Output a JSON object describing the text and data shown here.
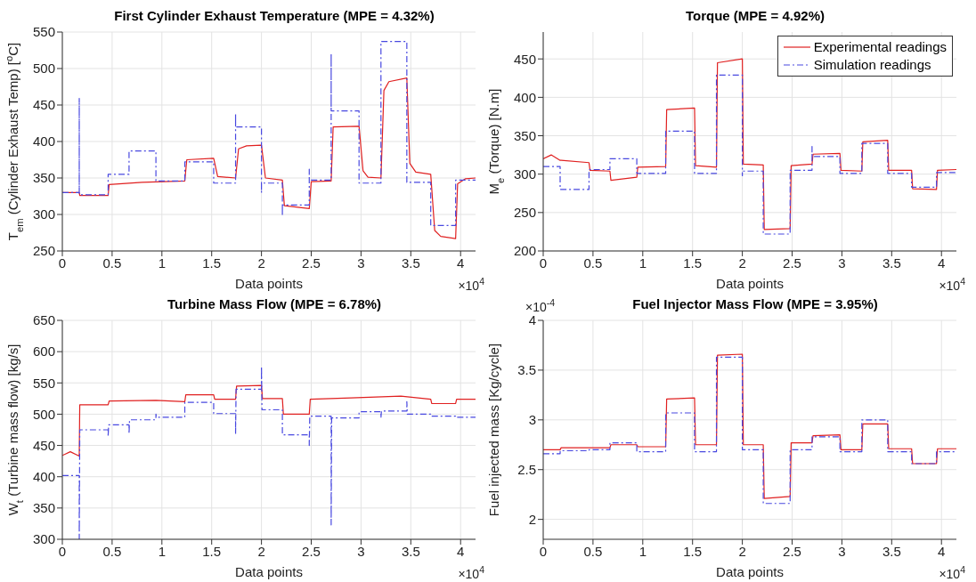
{
  "chart_data": [
    {
      "type": "line",
      "title": "First Cylinder Exhaust Temperature (MPE = 4.32%)",
      "xlabel": "Data points",
      "ylabel": "T$_{em}$ (Cylinder Exhaust Temp) [$^{o}$C]",
      "xlim": [
        0,
        4.15
      ],
      "xticks": [
        0,
        0.5,
        1,
        1.5,
        2,
        2.5,
        3,
        3.5,
        4
      ],
      "ylim": [
        250,
        550
      ],
      "yticks": [
        250,
        300,
        350,
        400,
        450,
        500,
        550
      ],
      "grid": true,
      "annotations": [
        "×10$^{4}$"
      ],
      "series": [
        {
          "color": "#e02020",
          "line_style": "solid",
          "x": [
            0,
            0.17,
            0.175,
            0.46,
            0.47,
            0.8,
            1.23,
            1.25,
            1.52,
            1.56,
            1.74,
            1.77,
            1.85,
            2.0,
            2.04,
            2.21,
            2.23,
            2.48,
            2.5,
            2.7,
            2.72,
            2.98,
            3.02,
            3.07,
            3.2,
            3.23,
            3.28,
            3.46,
            3.49,
            3.55,
            3.7,
            3.74,
            3.8,
            3.95,
            3.97,
            4.05,
            4.15
          ],
          "values": [
            330,
            330,
            326,
            326,
            341,
            344,
            346,
            375,
            377,
            352,
            350,
            390,
            394,
            395,
            350,
            347,
            312,
            308,
            345,
            346,
            420,
            421,
            360,
            351,
            350,
            470,
            482,
            487,
            370,
            358,
            355,
            278,
            270,
            267,
            342,
            349,
            350
          ]
        },
        {
          "color": "#4848e0",
          "line_style": "dashed",
          "x": [
            0,
            0.17,
            0.17,
            0.17,
            0.46,
            0.46,
            0.67,
            0.67,
            0.94,
            0.94,
            1.23,
            1.23,
            1.52,
            1.52,
            1.74,
            1.74,
            1.74,
            2.0,
            2.0,
            2.0,
            2.21,
            2.21,
            2.21,
            2.48,
            2.48,
            2.48,
            2.7,
            2.7,
            2.7,
            2.98,
            2.98,
            3.2,
            3.2,
            3.46,
            3.46,
            3.7,
            3.7,
            3.95,
            3.95,
            4.15
          ],
          "values": [
            330,
            330,
            459,
            327,
            327,
            355,
            355,
            387,
            387,
            346,
            346,
            372,
            372,
            343,
            343,
            438,
            420,
            420,
            330,
            343,
            343,
            298,
            313,
            313,
            362,
            347,
            347,
            520,
            442,
            442,
            343,
            343,
            537,
            537,
            344,
            344,
            285,
            285,
            347,
            347
          ]
        }
      ]
    },
    {
      "type": "line",
      "title": "Torque (MPE = 4.92%)",
      "xlabel": "Data points",
      "ylabel": "M$_{e}$ (Torque) [N.m]",
      "xlim": [
        0,
        4.15
      ],
      "xticks": [
        0,
        0.5,
        1,
        1.5,
        2,
        2.5,
        3,
        3.5,
        4
      ],
      "ylim": [
        200,
        485
      ],
      "yticks": [
        200,
        250,
        300,
        350,
        400,
        450
      ],
      "grid": true,
      "legend": "top right",
      "annotations": [
        "×10$^{4}$"
      ],
      "series": [
        {
          "name": "Experimental readings",
          "color": "#e02020",
          "line_style": "solid",
          "x": [
            0,
            0.08,
            0.17,
            0.18,
            0.46,
            0.47,
            0.67,
            0.68,
            0.94,
            0.95,
            1.23,
            1.24,
            1.52,
            1.53,
            1.74,
            1.75,
            2.0,
            2.01,
            2.21,
            2.22,
            2.48,
            2.49,
            2.7,
            2.71,
            2.98,
            2.99,
            3.2,
            3.21,
            3.46,
            3.47,
            3.7,
            3.71,
            3.95,
            3.96,
            4.15
          ],
          "values": [
            320,
            325,
            318,
            318,
            315,
            305,
            304,
            292,
            296,
            309,
            310,
            384,
            386,
            311,
            309,
            445,
            450,
            313,
            312,
            228,
            229,
            311,
            313,
            326,
            327,
            305,
            304,
            342,
            344,
            305,
            305,
            281,
            280,
            305,
            306
          ]
        },
        {
          "name": "Simulation readings",
          "color": "#4848e0",
          "line_style": "dashed",
          "x": [
            0,
            0.17,
            0.17,
            0.46,
            0.46,
            0.67,
            0.67,
            0.94,
            0.94,
            1.23,
            1.23,
            1.52,
            1.52,
            1.74,
            1.74,
            2.0,
            2.0,
            2.0,
            2.21,
            2.21,
            2.48,
            2.48,
            2.7,
            2.7,
            2.7,
            2.98,
            2.98,
            3.2,
            3.2,
            3.46,
            3.46,
            3.7,
            3.7,
            3.95,
            3.95,
            4.15
          ],
          "values": [
            310,
            310,
            280,
            280,
            306,
            306,
            320,
            320,
            301,
            301,
            356,
            356,
            301,
            301,
            429,
            429,
            298,
            304,
            304,
            222,
            222,
            305,
            305,
            336,
            323,
            323,
            301,
            301,
            340,
            340,
            301,
            301,
            283,
            283,
            302,
            302
          ]
        }
      ]
    },
    {
      "type": "line",
      "title": "Turbine Mass Flow (MPE = 6.78%)",
      "xlabel": "Data points",
      "ylabel": "W$_{t}$ (Turbine mass flow) [kg/s]",
      "xlim": [
        0,
        4.15
      ],
      "xticks": [
        0,
        0.5,
        1,
        1.5,
        2,
        2.5,
        3,
        3.5,
        4
      ],
      "ylim": [
        300,
        650
      ],
      "yticks": [
        300,
        350,
        400,
        450,
        500,
        550,
        600,
        650
      ],
      "grid": true,
      "annotations": [
        "×10$^{4}$"
      ],
      "series": [
        {
          "color": "#e02020",
          "line_style": "solid",
          "x": [
            0,
            0.08,
            0.17,
            0.175,
            0.46,
            0.47,
            0.94,
            1.23,
            1.24,
            1.52,
            1.53,
            1.74,
            1.75,
            2.0,
            2.01,
            2.21,
            2.22,
            2.48,
            2.49,
            2.9,
            3.4,
            3.7,
            3.71,
            3.95,
            3.96,
            4.15
          ],
          "values": [
            434,
            440,
            433,
            515,
            515,
            521,
            522,
            520,
            531,
            531,
            524,
            524,
            545,
            546,
            525,
            525,
            500,
            500,
            524,
            526,
            529,
            524,
            517,
            517,
            524,
            524
          ]
        },
        {
          "color": "#4848e0",
          "line_style": "dashed",
          "x": [
            0,
            0.17,
            0.17,
            0.175,
            0.46,
            0.46,
            0.465,
            0.67,
            0.67,
            0.675,
            0.94,
            0.94,
            0.945,
            1.23,
            1.23,
            1.52,
            1.52,
            1.74,
            1.74,
            1.745,
            2.0,
            2.0,
            2.005,
            2.21,
            2.21,
            2.48,
            2.48,
            2.485,
            2.7,
            2.7,
            2.705,
            2.98,
            2.98,
            3.2,
            3.2,
            3.205,
            3.46,
            3.46,
            3.465,
            3.7,
            3.7,
            3.95,
            3.95,
            4.15
          ],
          "values": [
            402,
            402,
            300,
            475,
            475,
            465,
            483,
            483,
            469,
            491,
            491,
            500,
            495,
            495,
            519,
            519,
            501,
            501,
            468,
            540,
            540,
            576,
            507,
            507,
            467,
            467,
            450,
            497,
            497,
            323,
            494,
            494,
            504,
            504,
            494,
            505,
            505,
            520,
            500,
            500,
            497,
            497,
            495,
            495
          ]
        }
      ]
    },
    {
      "type": "line",
      "title": "Fuel Injector Mass Flow (MPE = 3.95%)",
      "xlabel": "Data points",
      "ylabel": "Fuel injected mass [Kg/cycle]",
      "xlim": [
        0,
        4.15
      ],
      "xticks": [
        0,
        0.5,
        1,
        1.5,
        2,
        2.5,
        3,
        3.5,
        4
      ],
      "ylim": [
        1.8,
        4
      ],
      "yticks": [
        2,
        2.5,
        3,
        3.5,
        4
      ],
      "grid": true,
      "annotations": [
        "×10$^{4}$",
        "×10$^{-4}$"
      ],
      "series": [
        {
          "color": "#e02020",
          "line_style": "solid",
          "x": [
            0,
            0.17,
            0.18,
            0.67,
            0.68,
            0.94,
            0.95,
            1.23,
            1.24,
            1.52,
            1.53,
            1.74,
            1.75,
            2.0,
            2.01,
            2.21,
            2.22,
            2.48,
            2.49,
            2.7,
            2.71,
            2.98,
            2.99,
            3.2,
            3.21,
            3.46,
            3.47,
            3.7,
            3.71,
            3.95,
            3.96,
            4.15
          ],
          "values": [
            2.7,
            2.7,
            2.72,
            2.72,
            2.75,
            2.75,
            2.73,
            2.73,
            3.21,
            3.22,
            2.75,
            2.75,
            3.65,
            3.66,
            2.75,
            2.75,
            2.21,
            2.23,
            2.77,
            2.77,
            2.84,
            2.85,
            2.7,
            2.7,
            2.96,
            2.96,
            2.71,
            2.71,
            2.56,
            2.56,
            2.71,
            2.71
          ]
        },
        {
          "color": "#4848e0",
          "line_style": "dashed",
          "x": [
            0,
            0.17,
            0.17,
            0.46,
            0.46,
            0.67,
            0.67,
            0.94,
            0.94,
            1.23,
            1.23,
            1.52,
            1.52,
            1.74,
            1.74,
            2.0,
            2.0,
            2.21,
            2.21,
            2.48,
            2.48,
            2.7,
            2.7,
            2.98,
            2.98,
            3.2,
            3.2,
            3.46,
            3.46,
            3.7,
            3.7,
            3.95,
            3.95,
            4.15
          ],
          "values": [
            2.66,
            2.66,
            2.69,
            2.69,
            2.7,
            2.7,
            2.77,
            2.77,
            2.68,
            2.68,
            3.07,
            3.07,
            2.68,
            2.68,
            3.63,
            3.63,
            2.7,
            2.7,
            2.16,
            2.16,
            2.7,
            2.7,
            2.83,
            2.83,
            2.68,
            2.68,
            3.0,
            3.0,
            2.68,
            2.68,
            2.56,
            2.56,
            2.68,
            2.68
          ]
        }
      ]
    }
  ]
}
